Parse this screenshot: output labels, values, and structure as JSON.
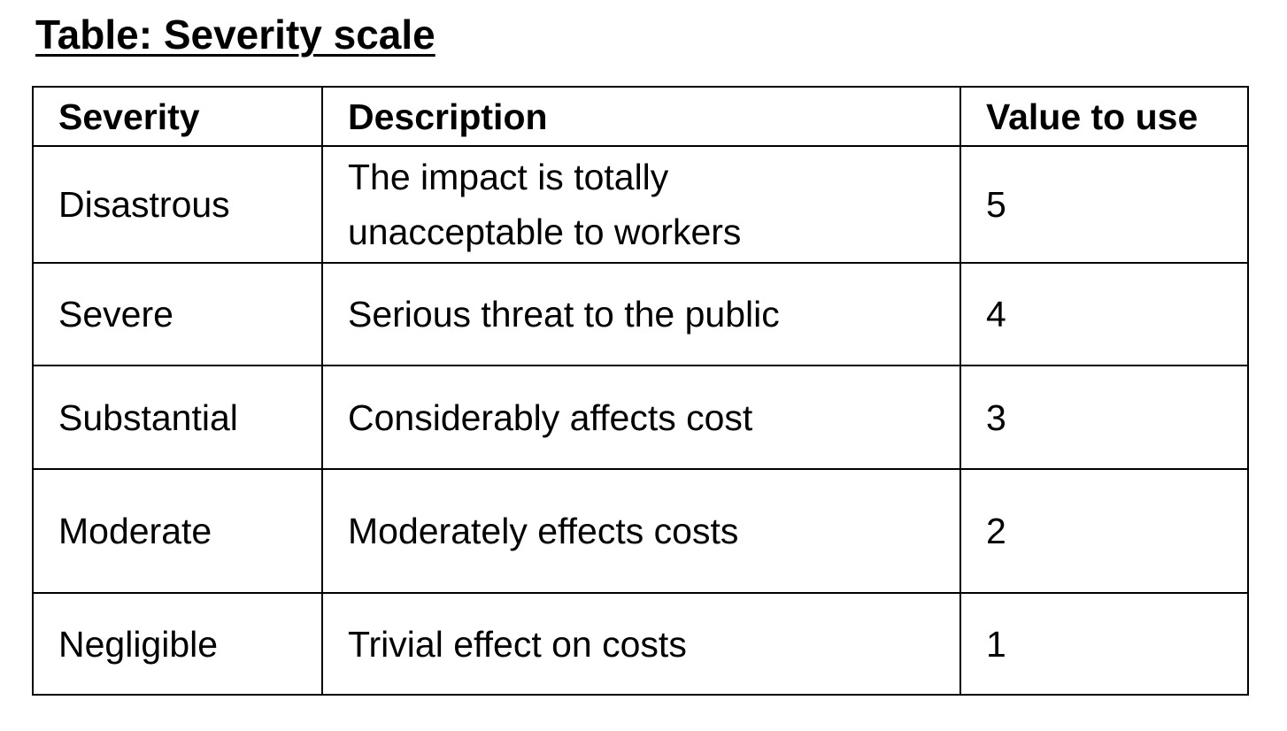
{
  "title": "Table: Severity scale",
  "table": {
    "headers": [
      "Severity",
      "Description",
      "Value to use"
    ],
    "rows": [
      {
        "severity": "Disastrous",
        "description_lines": [
          "The impact is totally",
          "unacceptable to workers"
        ],
        "value": "5"
      },
      {
        "severity": "Severe",
        "description_lines": [
          "Serious threat to the public"
        ],
        "value": "4"
      },
      {
        "severity": "Substantial",
        "description_lines": [
          "Considerably affects cost"
        ],
        "value": "3"
      },
      {
        "severity": "Moderate",
        "description_lines": [
          "Moderately effects costs"
        ],
        "value": "2"
      },
      {
        "severity": "Negligible",
        "description_lines": [
          "Trivial effect on costs"
        ],
        "value": "1"
      }
    ]
  }
}
